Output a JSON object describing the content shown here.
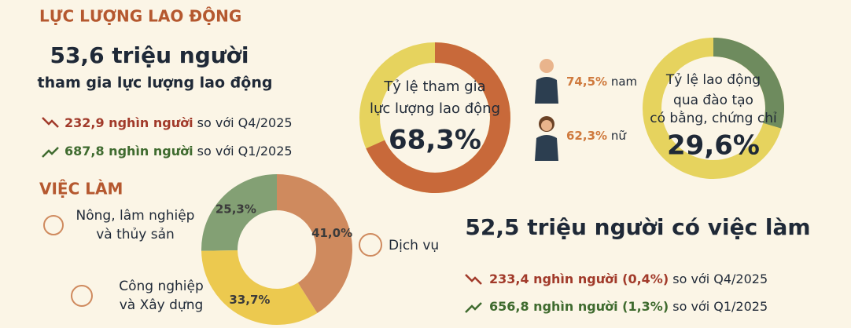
{
  "labor": {
    "title": "LỰC LƯỢNG LAO ĐỘNG",
    "headline": "53,6 triệu người",
    "subline": "tham gia lực lượng lao động",
    "changes": [
      {
        "amount": "232,9 nghìn người",
        "text": "so với Q4/2025"
      },
      {
        "amount": "687,8 nghìn người",
        "text": "so với Q1/2025"
      }
    ]
  },
  "participation": {
    "label_lines": [
      "Tỷ lệ tham gia",
      "lực lượng lao động"
    ],
    "value": 68.3,
    "value_label": "68,3%",
    "gender": [
      {
        "value": 74.5,
        "value_label": "74,5%",
        "name": "nam"
      },
      {
        "value": 62.3,
        "value_label": "62,3%",
        "name": "nữ"
      }
    ]
  },
  "trained": {
    "label_lines": [
      "Tỷ lệ lao động",
      "qua đào tạo",
      "có bằng, chứng chỉ"
    ],
    "value": 29.6,
    "value_label": "29,6%"
  },
  "employment": {
    "title": "VIỆC LÀM",
    "headline": "52,5 triệu người có việc làm",
    "changes": [
      {
        "amount": "233,4 nghìn người (0,4%)",
        "text": "so với Q4/2025"
      },
      {
        "amount": "656,8 nghìn người (1,3%)",
        "text": "so với Q1/2025"
      }
    ],
    "sectors": [
      {
        "name_lines": [
          "Dịch vụ"
        ],
        "value": 41.0,
        "value_label": "41,0%",
        "color": "#cf8a5e"
      },
      {
        "name_lines": [
          "Công nghiệp",
          "và Xây dựng"
        ],
        "value": 33.7,
        "value_label": "33,7%",
        "color": "#ecc94f"
      },
      {
        "name_lines": [
          "Nông, lâm nghiệp",
          "và thủy sản"
        ],
        "value": 25.3,
        "value_label": "25,3%",
        "color": "#83a074"
      }
    ]
  }
}
